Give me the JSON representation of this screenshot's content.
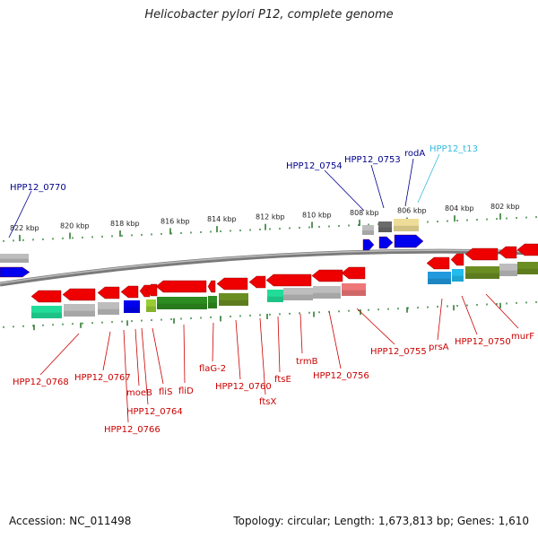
{
  "title": "Helicobacter pylori P12, complete genome",
  "footer": {
    "accession": "Accession: NC_011498",
    "info": "Topology: circular; Length: 1,673,813 bp; Genes: 1,610"
  },
  "colors": {
    "top_label": "#00008b",
    "bottom_label": "#cc0000",
    "trna_label": "#33bbdd",
    "backbone": "#808080",
    "tick": "#2e7d32"
  },
  "scale_ticks": [
    "822 kbp",
    "820 kbp",
    "818 kbp",
    "816 kbp",
    "814 kbp",
    "812 kbp",
    "810 kbp",
    "808 kbp",
    "806 kbp",
    "804 kbp",
    "802 kbp"
  ],
  "top_labels": [
    {
      "text": "HPP12_0770",
      "kind": "top"
    },
    {
      "text": "HPP12_0754",
      "kind": "top"
    },
    {
      "text": "HPP12_0753",
      "kind": "top"
    },
    {
      "text": "rodA",
      "kind": "top"
    },
    {
      "text": "HPP12_t13",
      "kind": "trna"
    }
  ],
  "bottom_labels": [
    {
      "text": "HPP12_0768"
    },
    {
      "text": "HPP12_0767"
    },
    {
      "text": "moeB"
    },
    {
      "text": "HPP12_0764"
    },
    {
      "text": "HPP12_0766"
    },
    {
      "text": "fliS"
    },
    {
      "text": "fliD"
    },
    {
      "text": "flaG-2"
    },
    {
      "text": "HPP12_0760"
    },
    {
      "text": "ftsX"
    },
    {
      "text": "ftsE"
    },
    {
      "text": "trmB"
    },
    {
      "text": "HPP12_0756"
    },
    {
      "text": "HPP12_0755"
    },
    {
      "text": "prsA"
    },
    {
      "text": "HPP12_0750"
    },
    {
      "text": "murF"
    }
  ]
}
